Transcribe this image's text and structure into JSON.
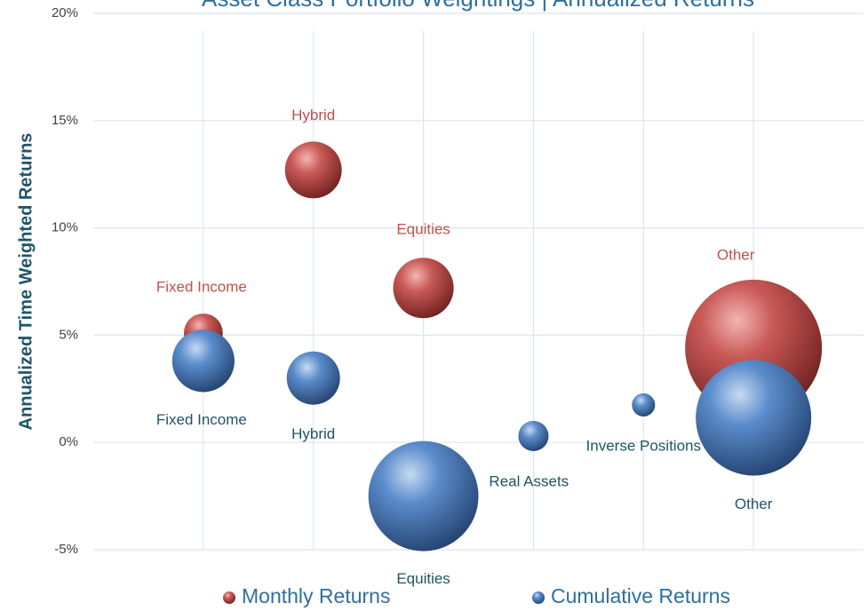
{
  "chart_data": {
    "type": "bubble",
    "title": "Asset Class Portfolio Weightings | Annualized Returns",
    "y_label": "Annualized Time Weighted Returns",
    "categories": [
      "Fixed Income",
      "Hybrid",
      "Equities",
      "Real Assets",
      "Inverse Positions",
      "Other"
    ],
    "ylim": [
      -5,
      20
    ],
    "yticks": [
      {
        "value": -5,
        "label": "-5%"
      },
      {
        "value": 0,
        "label": "0%"
      },
      {
        "value": 5,
        "label": "5%"
      },
      {
        "value": 10,
        "label": "10%"
      },
      {
        "value": 15,
        "label": "15%"
      },
      {
        "value": 20,
        "label": "20%"
      }
    ],
    "grid": true,
    "legend": "bottom",
    "series": [
      {
        "name": "Monthly Returns",
        "color": "#c0504d",
        "values": [
          5.1,
          12.7,
          7.2,
          null,
          null,
          4.4
        ],
        "sizes": [
          4.8,
          10.2,
          11.6,
          null,
          null,
          59.3
        ]
      },
      {
        "name": "Cumulative Returns",
        "color": "#4f81bd",
        "values": [
          3.8,
          3.0,
          -2.5,
          0.3,
          1.75,
          1.15
        ],
        "sizes": [
          12.3,
          9.0,
          38.4,
          2.9,
          1.7,
          42.3
        ]
      }
    ]
  }
}
